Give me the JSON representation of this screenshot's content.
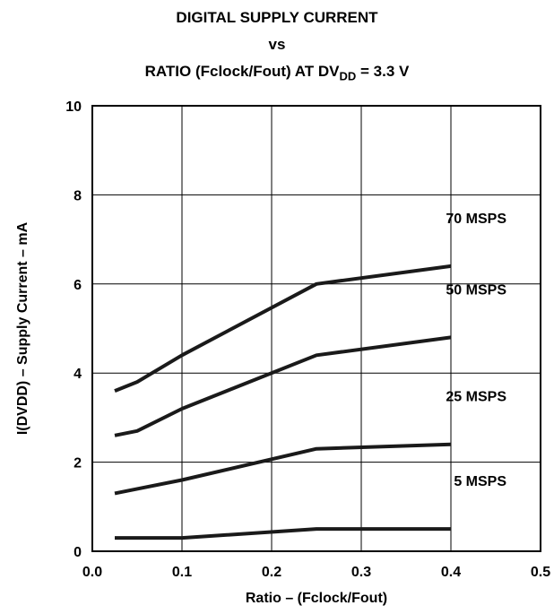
{
  "title": {
    "line1": "DIGITAL SUPPLY CURRENT",
    "line2": "vs",
    "line3_main": "RATIO (Fclock/Fout) AT DV",
    "line3_sub": "DD",
    "line3_tail": " = 3.3 V"
  },
  "chart_data": {
    "type": "line",
    "xlabel": "Ratio – (Fclock/Fout)",
    "ylabel": "I(DVDD) – Supply Current – mA",
    "xlim": [
      0.0,
      0.5
    ],
    "ylim": [
      0,
      10
    ],
    "x_ticks": [
      "0.0",
      "0.1",
      "0.2",
      "0.3",
      "0.4",
      "0.5"
    ],
    "y_ticks": [
      "0",
      "2",
      "4",
      "6",
      "8",
      "10"
    ],
    "grid": true,
    "line_color": "#1a1a1a",
    "series": [
      {
        "name": "70 MSPS",
        "x": [
          0.025,
          0.05,
          0.1,
          0.25,
          0.4
        ],
        "y": [
          3.6,
          3.8,
          4.4,
          6.0,
          6.4
        ]
      },
      {
        "name": "50 MSPS",
        "x": [
          0.025,
          0.05,
          0.1,
          0.25,
          0.4
        ],
        "y": [
          2.6,
          2.7,
          3.2,
          4.4,
          4.8
        ]
      },
      {
        "name": "25 MSPS",
        "x": [
          0.025,
          0.05,
          0.1,
          0.25,
          0.4
        ],
        "y": [
          1.3,
          1.4,
          1.6,
          2.3,
          2.4
        ]
      },
      {
        "name": "5 MSPS",
        "x": [
          0.025,
          0.05,
          0.1,
          0.25,
          0.4
        ],
        "y": [
          0.3,
          0.3,
          0.3,
          0.5,
          0.5
        ]
      }
    ]
  }
}
